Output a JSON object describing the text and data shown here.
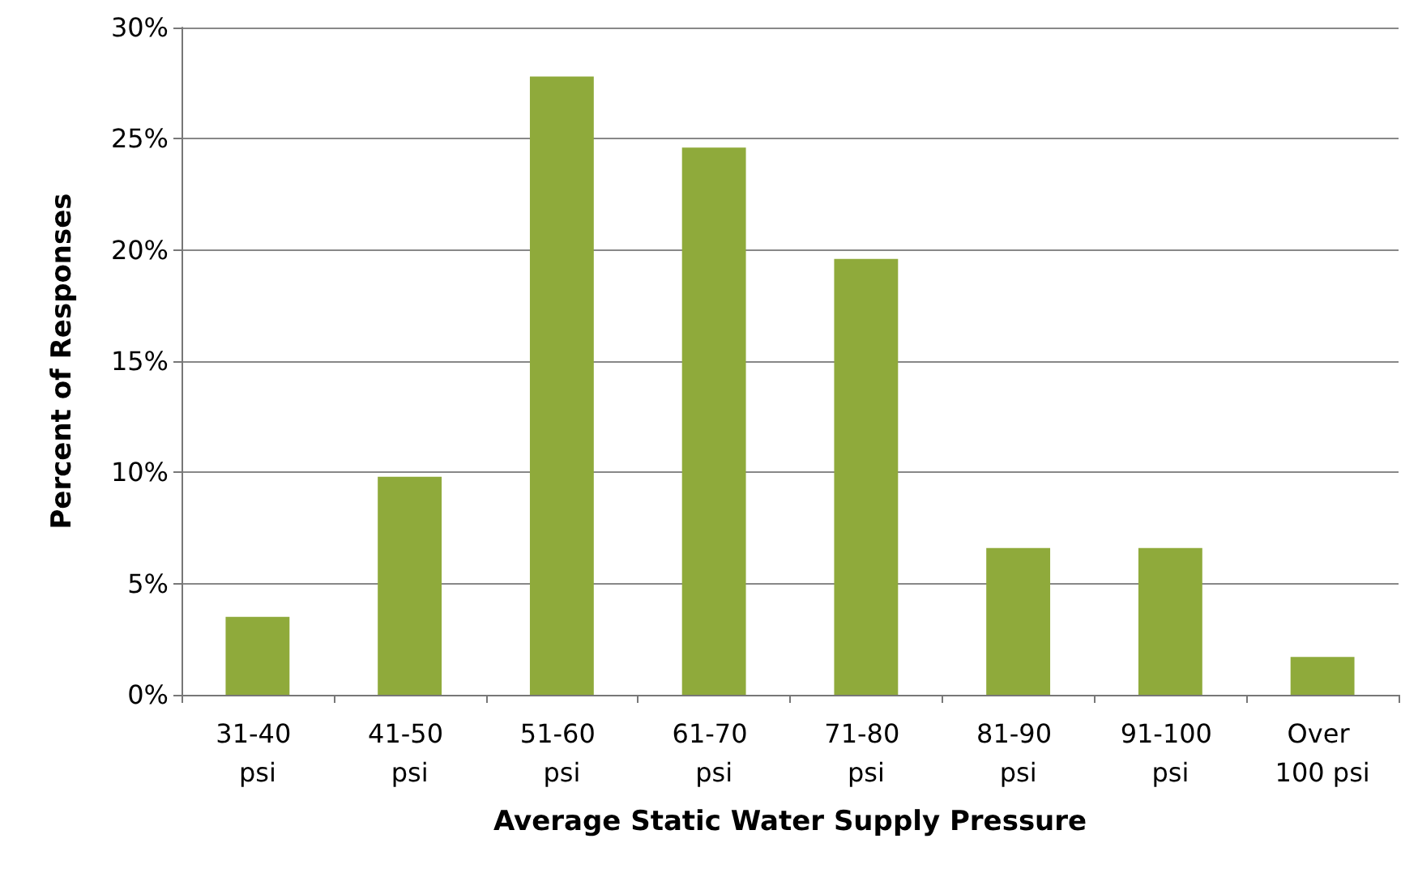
{
  "chart_data": {
    "type": "bar",
    "xlabel": "Average Static Water Supply Pressure",
    "ylabel": "Percent of Responses",
    "categories": [
      "31-40 psi",
      "41-50 psi",
      "51-60 psi",
      "61-70 psi",
      "71-80 psi",
      "81-90 psi",
      "91-100 psi",
      "Over 100 psi"
    ],
    "values": [
      3.5,
      9.8,
      27.8,
      24.6,
      19.6,
      6.6,
      6.6,
      1.7
    ],
    "color": "#8faa3b",
    "ylim": [
      0,
      30
    ],
    "yticks": [
      {
        "value": 0,
        "label": "0%"
      },
      {
        "value": 5,
        "label": "5%"
      },
      {
        "value": 10,
        "label": "10%"
      },
      {
        "value": 15,
        "label": "15%"
      },
      {
        "value": 20,
        "label": "20%"
      },
      {
        "value": 25,
        "label": "25%"
      },
      {
        "value": 30,
        "label": "30%"
      }
    ],
    "grid": "y"
  }
}
